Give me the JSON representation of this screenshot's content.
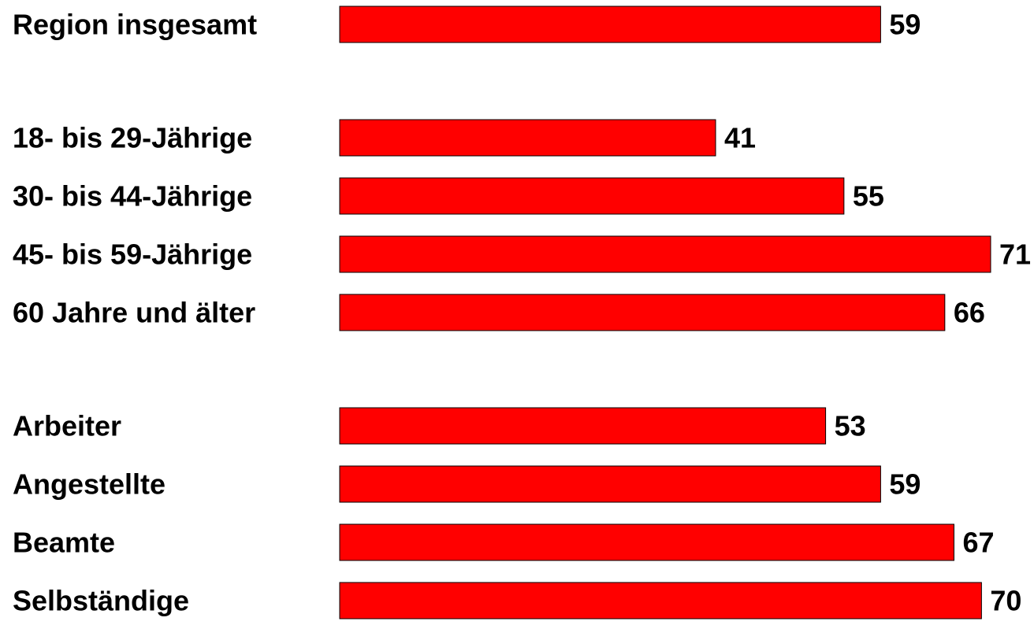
{
  "chart_data": {
    "type": "bar",
    "orientation": "horizontal",
    "categories": [
      "Region insgesamt",
      "18- bis 29-Jährige",
      "30- bis 44-Jährige",
      "45- bis 59-Jährige",
      "60 Jahre und älter",
      "Arbeiter",
      "Angestellte",
      "Beamte",
      "Selbständige"
    ],
    "values": [
      59,
      41,
      55,
      71,
      66,
      53,
      59,
      67,
      70
    ],
    "groups": [
      [
        0
      ],
      [
        1,
        2,
        3,
        4
      ],
      [
        5,
        6,
        7,
        8
      ]
    ],
    "title": "",
    "xlabel": "",
    "ylabel": "",
    "xlim": [
      0,
      71
    ],
    "grid": false,
    "legend": "none",
    "bar_color": "#ff0000",
    "bar_border_color": "#000000",
    "data_labels": true
  }
}
